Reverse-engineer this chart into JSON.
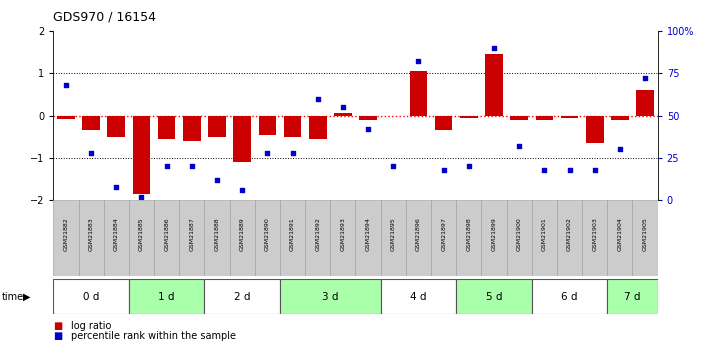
{
  "title": "GDS970 / 16154",
  "samples": [
    "GSM21882",
    "GSM21883",
    "GSM21884",
    "GSM21885",
    "GSM21886",
    "GSM21887",
    "GSM21888",
    "GSM21889",
    "GSM21890",
    "GSM21891",
    "GSM21892",
    "GSM21893",
    "GSM21894",
    "GSM21895",
    "GSM21896",
    "GSM21897",
    "GSM21898",
    "GSM21899",
    "GSM21900",
    "GSM21901",
    "GSM21902",
    "GSM21903",
    "GSM21904",
    "GSM21905"
  ],
  "log_ratio": [
    -0.07,
    -0.35,
    -0.5,
    -1.85,
    -0.55,
    -0.6,
    -0.5,
    -1.1,
    -0.45,
    -0.5,
    -0.55,
    0.05,
    -0.1,
    0.0,
    1.05,
    -0.35,
    -0.05,
    1.45,
    -0.1,
    -0.1,
    -0.05,
    -0.65,
    -0.1,
    0.6
  ],
  "percentile": [
    68,
    28,
    8,
    2,
    20,
    20,
    12,
    6,
    28,
    28,
    60,
    55,
    42,
    20,
    82,
    18,
    20,
    90,
    32,
    18,
    18,
    18,
    30,
    72
  ],
  "time_groups": [
    {
      "label": "0 d",
      "start": 0,
      "end": 2,
      "color": "#ffffff"
    },
    {
      "label": "1 d",
      "start": 3,
      "end": 5,
      "color": "#aaffaa"
    },
    {
      "label": "2 d",
      "start": 6,
      "end": 8,
      "color": "#ffffff"
    },
    {
      "label": "3 d",
      "start": 9,
      "end": 12,
      "color": "#aaffaa"
    },
    {
      "label": "4 d",
      "start": 13,
      "end": 15,
      "color": "#ffffff"
    },
    {
      "label": "5 d",
      "start": 16,
      "end": 18,
      "color": "#aaffaa"
    },
    {
      "label": "6 d",
      "start": 19,
      "end": 21,
      "color": "#ffffff"
    },
    {
      "label": "7 d",
      "start": 22,
      "end": 23,
      "color": "#aaffaa"
    }
  ],
  "ylim": [
    -2,
    2
  ],
  "bar_color": "#cc0000",
  "scatter_color": "#0000cc",
  "zero_line_color": "#ff0000",
  "legend_bar_label": "log ratio",
  "legend_scatter_label": "percentile rank within the sample"
}
